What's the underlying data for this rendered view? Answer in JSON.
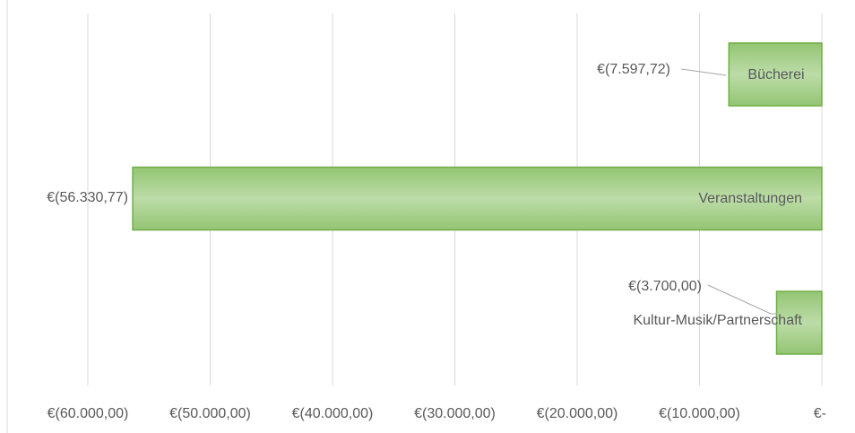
{
  "chart_data": {
    "type": "bar",
    "orientation": "horizontal",
    "categories": [
      "Bücherei",
      "Veranstaltungen",
      "Kultur-Musik/Partnerschaft"
    ],
    "values": [
      -7597.72,
      -56330.77,
      -3700
    ],
    "value_labels": [
      "€(7.597,72)",
      "€(56.330,77)",
      "€(3.700,00)"
    ],
    "color": "#a9d18e",
    "xlim": [
      -60000,
      0
    ],
    "xticks": [
      {
        "value": -60000,
        "label": "€(60.000,00)"
      },
      {
        "value": -50000,
        "label": "€(50.000,00)"
      },
      {
        "value": -40000,
        "label": "€(40.000,00)"
      },
      {
        "value": -30000,
        "label": "€(30.000,00)"
      },
      {
        "value": -20000,
        "label": "€(20.000,00)"
      },
      {
        "value": -10000,
        "label": "€(10.000,00)"
      },
      {
        "value": 0,
        "label": "€-"
      }
    ],
    "grid": true
  }
}
